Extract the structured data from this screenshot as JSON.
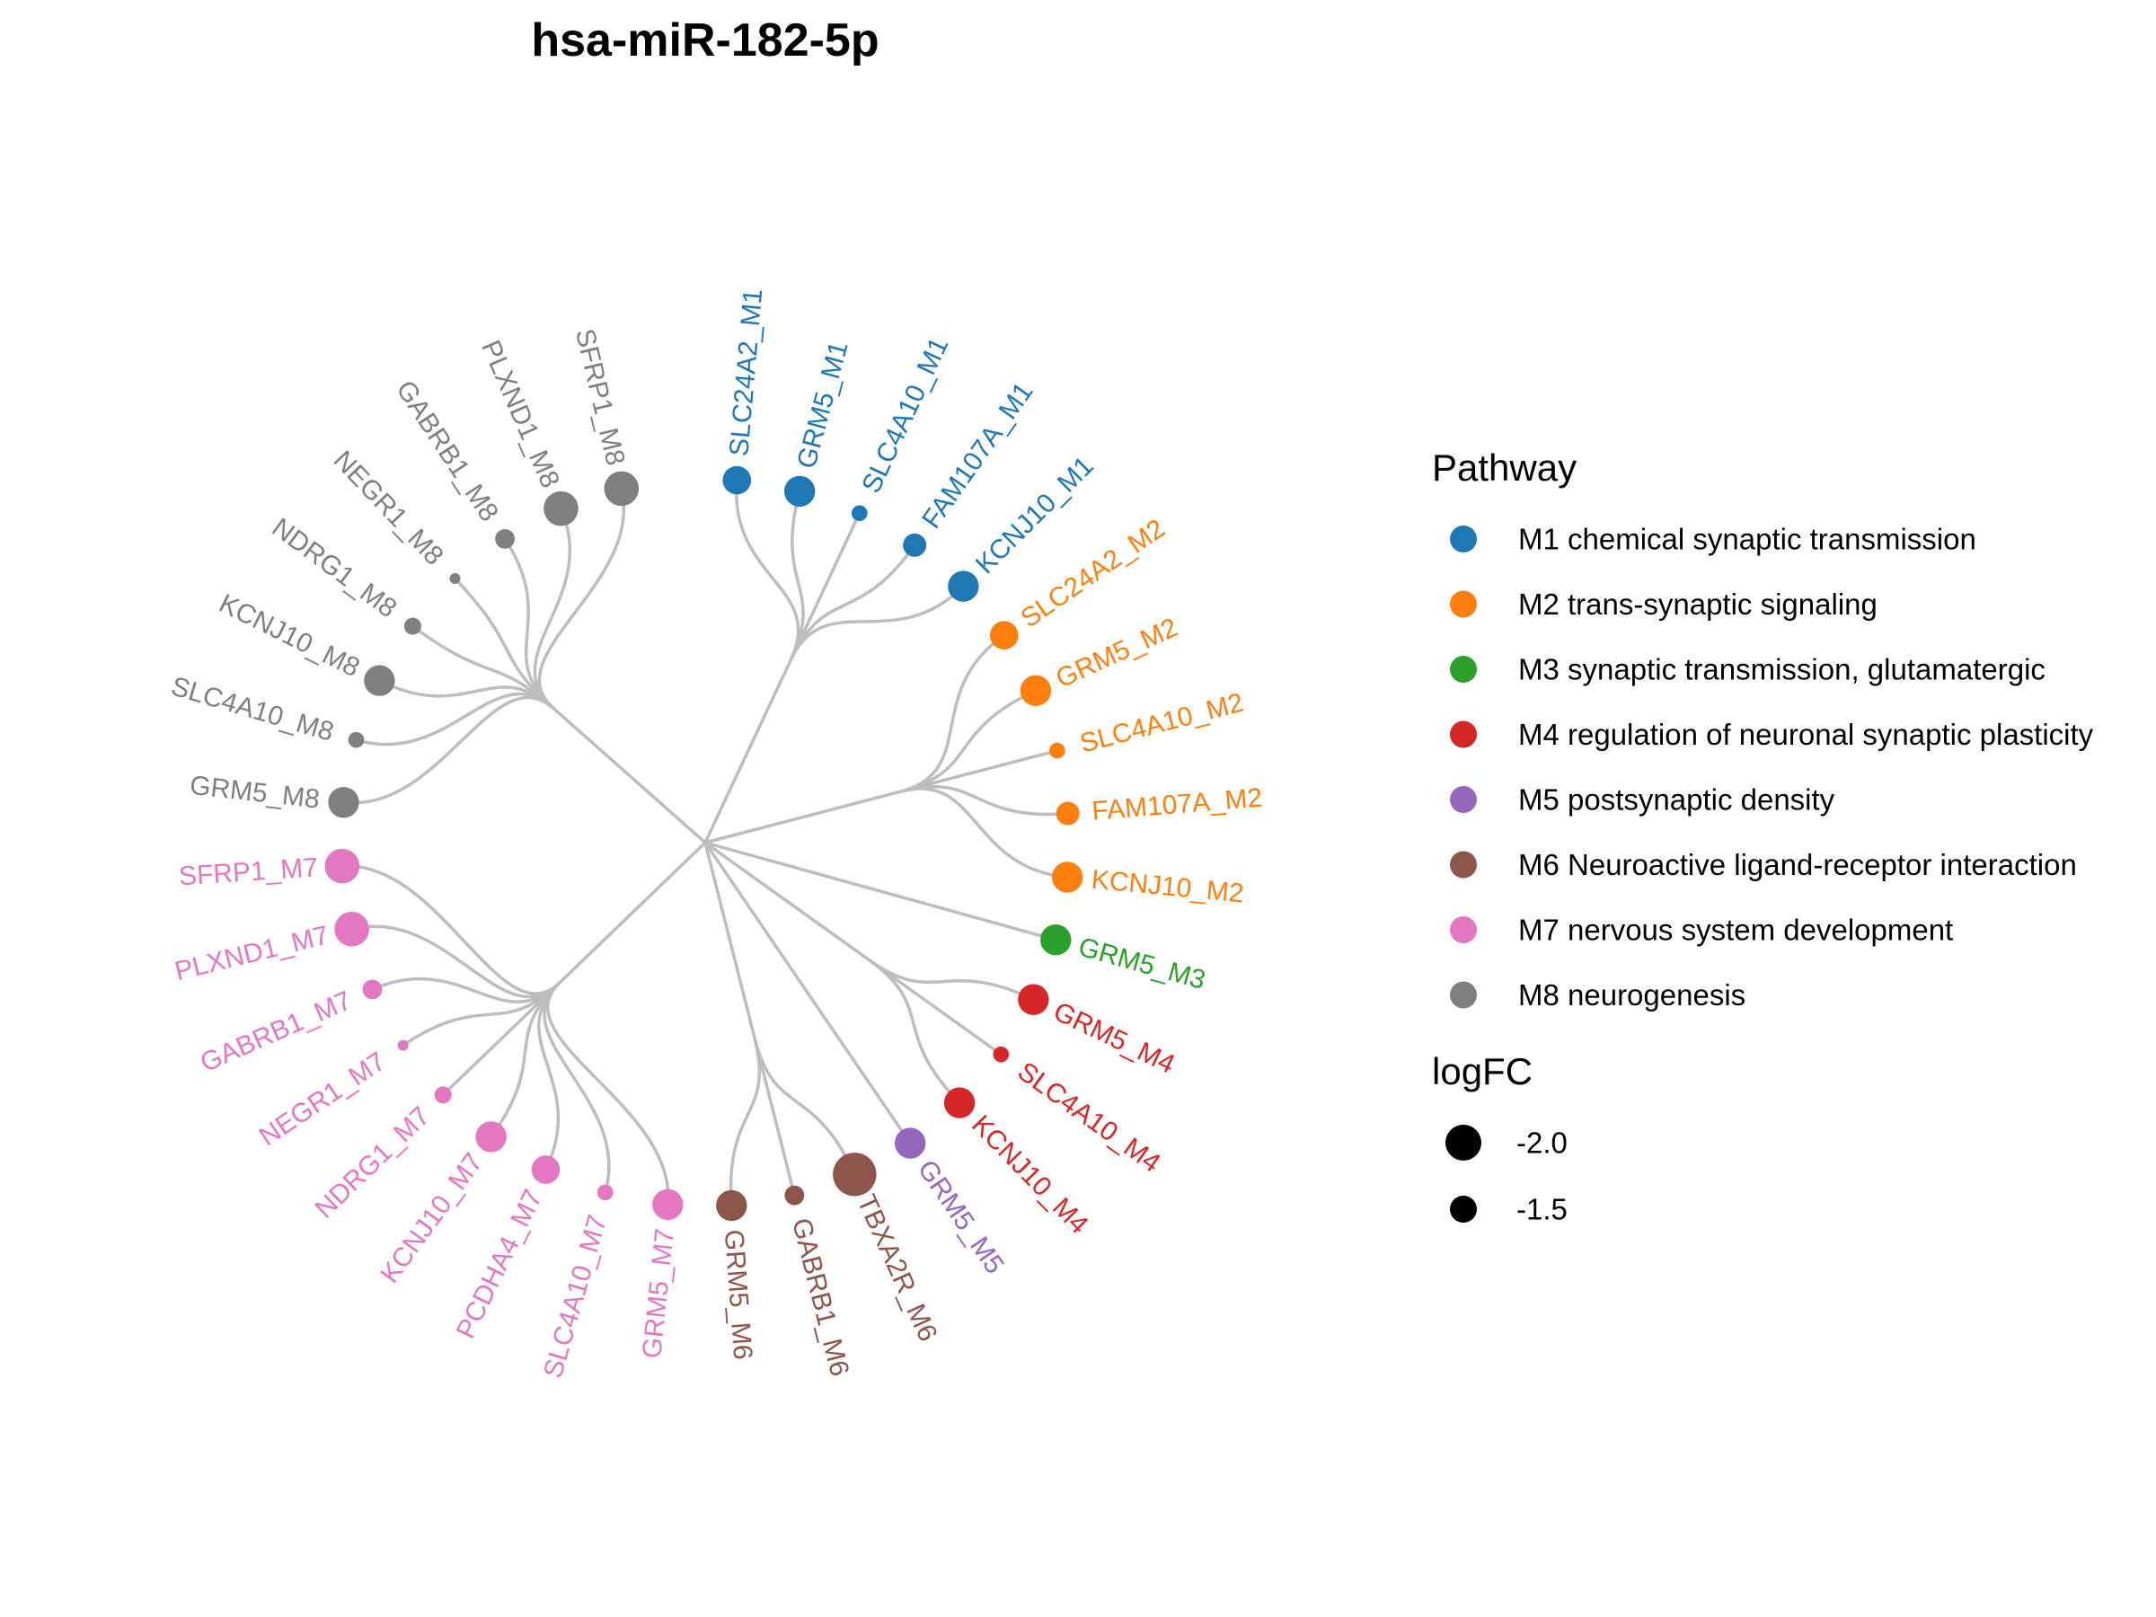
{
  "title": "hsa-miR-182-5p",
  "colors": {
    "M1": "#1f77b4",
    "M2": "#ff7f0e",
    "M3": "#2ca02c",
    "M4": "#d62728",
    "M5": "#9467bd",
    "M6": "#8c564b",
    "M7": "#e377c2",
    "M8": "#7f7f7f"
  },
  "legend": {
    "pathway_title": "Pathway",
    "pathways": [
      {
        "key": "M1",
        "label": "M1 chemical synaptic transmission"
      },
      {
        "key": "M2",
        "label": "M2 trans-synaptic signaling"
      },
      {
        "key": "M3",
        "label": "M3 synaptic transmission, glutamatergic"
      },
      {
        "key": "M4",
        "label": "M4 regulation of neuronal synaptic plasticity"
      },
      {
        "key": "M5",
        "label": "M5 postsynaptic density"
      },
      {
        "key": "M6",
        "label": "M6 Neuroactive ligand-receptor interaction"
      },
      {
        "key": "M7",
        "label": "M7 nervous system development"
      },
      {
        "key": "M8",
        "label": "M8 neurogenesis"
      }
    ],
    "logfc_title": "logFC",
    "logfc_entries": [
      {
        "label": "-2.0",
        "value": -2.0
      },
      {
        "label": "-1.5",
        "value": -1.5
      }
    ]
  },
  "chart_data": {
    "type": "dendrogram",
    "root": "hsa-miR-182-5p",
    "modules": [
      {
        "key": "M1",
        "leaves": [
          {
            "label": "SLC24A2_M1",
            "logFC": -1.7
          },
          {
            "label": "GRM5_M1",
            "logFC": -1.8
          },
          {
            "label": "SLC4A10_M1",
            "logFC": -1.2
          },
          {
            "label": "FAM107A_M1",
            "logFC": -1.5
          },
          {
            "label": "KCNJ10_M1",
            "logFC": -1.8
          }
        ]
      },
      {
        "key": "M2",
        "leaves": [
          {
            "label": "SLC24A2_M2",
            "logFC": -1.7
          },
          {
            "label": "GRM5_M2",
            "logFC": -1.8
          },
          {
            "label": "SLC4A10_M2",
            "logFC": -1.2
          },
          {
            "label": "FAM107A_M2",
            "logFC": -1.5
          },
          {
            "label": "KCNJ10_M2",
            "logFC": -1.8
          }
        ]
      },
      {
        "key": "M3",
        "leaves": [
          {
            "label": "GRM5_M3",
            "logFC": -1.8
          }
        ]
      },
      {
        "key": "M4",
        "leaves": [
          {
            "label": "GRM5_M4",
            "logFC": -1.8
          },
          {
            "label": "SLC4A10_M4",
            "logFC": -1.2
          },
          {
            "label": "KCNJ10_M4",
            "logFC": -1.8
          }
        ]
      },
      {
        "key": "M5",
        "leaves": [
          {
            "label": "GRM5_M5",
            "logFC": -1.8
          }
        ]
      },
      {
        "key": "M6",
        "leaves": [
          {
            "label": "TBXA2R_M6",
            "logFC": -2.3
          },
          {
            "label": "GABRB1_M6",
            "logFC": -1.35
          },
          {
            "label": "GRM5_M6",
            "logFC": -1.8
          }
        ]
      },
      {
        "key": "M7",
        "leaves": [
          {
            "label": "GRM5_M7",
            "logFC": -1.8
          },
          {
            "label": "SLC4A10_M7",
            "logFC": -1.2
          },
          {
            "label": "PCDHA4_M7",
            "logFC": -1.7
          },
          {
            "label": "KCNJ10_M7",
            "logFC": -1.8
          },
          {
            "label": "NDRG1_M7",
            "logFC": -1.25
          },
          {
            "label": "NEGR1_M7",
            "logFC": -1.0
          },
          {
            "label": "GABRB1_M7",
            "logFC": -1.35
          },
          {
            "label": "PLXND1_M7",
            "logFC": -1.95
          },
          {
            "label": "SFRP1_M7",
            "logFC": -1.95
          }
        ]
      },
      {
        "key": "M8",
        "leaves": [
          {
            "label": "GRM5_M8",
            "logFC": -1.8
          },
          {
            "label": "SLC4A10_M8",
            "logFC": -1.2
          },
          {
            "label": "KCNJ10_M8",
            "logFC": -1.8
          },
          {
            "label": "NDRG1_M8",
            "logFC": -1.25
          },
          {
            "label": "NEGR1_M8",
            "logFC": -1.0
          },
          {
            "label": "GABRB1_M8",
            "logFC": -1.35
          },
          {
            "label": "PLXND1_M8",
            "logFC": -1.95
          },
          {
            "label": "SFRP1_M8",
            "logFC": -1.95
          }
        ]
      }
    ]
  }
}
